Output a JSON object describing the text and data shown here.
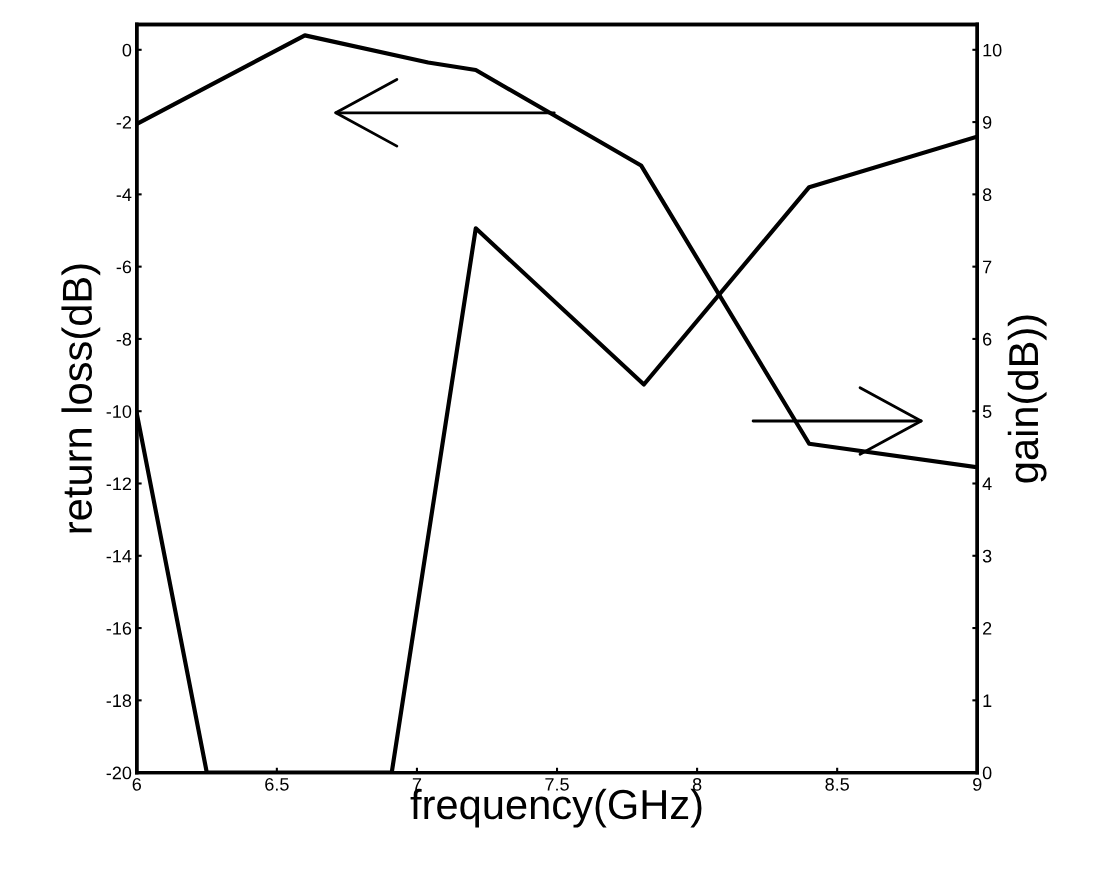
{
  "chart_data": {
    "type": "line",
    "xlabel": "frequency(GHz)",
    "ylabel": "return loss(dB)",
    "y2label": "gain(dB))",
    "xlim": [
      6,
      9
    ],
    "xticks": [
      6,
      6.5,
      7,
      7.5,
      8,
      8.5,
      9
    ],
    "ylim": [
      -20,
      0.7
    ],
    "yticks": [
      0,
      -2,
      -4,
      -6,
      -8,
      -10,
      -12,
      -14,
      -16,
      -18,
      -20
    ],
    "y2lim": [
      0,
      10.35
    ],
    "y2ticks": [
      0,
      1,
      2,
      3,
      4,
      5,
      6,
      7,
      8,
      9,
      10
    ],
    "grid": false,
    "marker": "none",
    "line_style": "solid",
    "series": [
      {
        "color": "#000000",
        "x": [
          6,
          6.6,
          7.04,
          7.21,
          7.8,
          8.4,
          9
        ],
        "values": [
          -2.05,
          0.4,
          -0.35,
          -0.56,
          -3.2,
          -10.9,
          -11.55
        ]
      },
      {
        "color": "#000000",
        "axis": "y2",
        "x": [
          6,
          6.25,
          6.91,
          7.21,
          7.81,
          8.4,
          9
        ],
        "values": [
          4.97,
          0,
          0,
          7.53,
          5.37,
          8.1,
          8.8
        ]
      }
    ]
  }
}
